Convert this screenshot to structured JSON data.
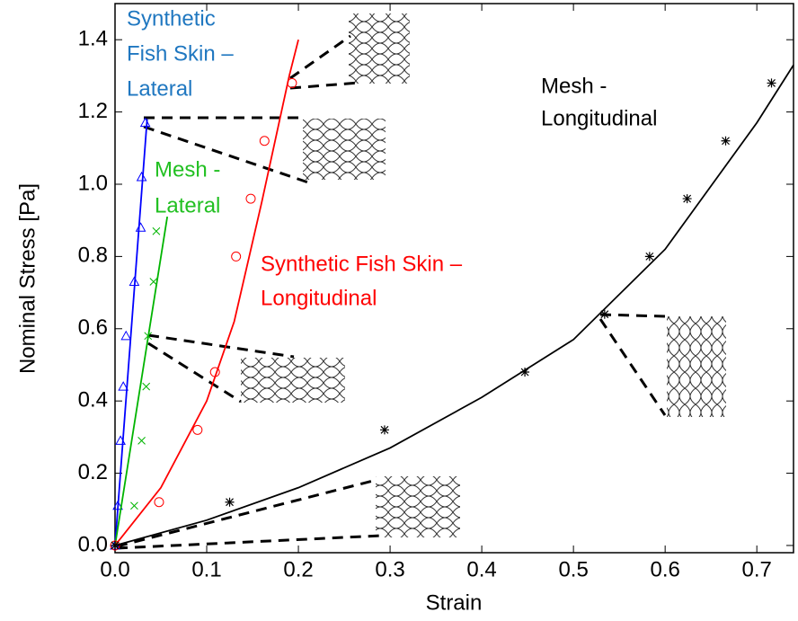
{
  "chart_data": {
    "type": "scatter",
    "x_label": "Strain",
    "y_label": "Nominal Stress [Pa]",
    "xlim": [
      0,
      0.74
    ],
    "ylim": [
      -0.02,
      1.5
    ],
    "xticks": [
      {
        "value": 0,
        "label": "0.0"
      },
      {
        "value": 0.1,
        "label": "0.1"
      },
      {
        "value": 0.2,
        "label": "0.2"
      },
      {
        "value": 0.3,
        "label": "0.3"
      },
      {
        "value": 0.4,
        "label": "0.4"
      },
      {
        "value": 0.5,
        "label": "0.5"
      },
      {
        "value": 0.6,
        "label": "0.6"
      },
      {
        "value": 0.7,
        "label": "0.7"
      }
    ],
    "yticks": [
      {
        "value": 0,
        "label": "0.0"
      },
      {
        "value": 0.2,
        "label": "0.2"
      },
      {
        "value": 0.4,
        "label": "0.4"
      },
      {
        "value": 0.6,
        "label": "0.6"
      },
      {
        "value": 0.8,
        "label": "0.8"
      },
      {
        "value": 1.0,
        "label": "1.0"
      },
      {
        "value": 1.2,
        "label": "1.2"
      },
      {
        "value": 1.4,
        "label": "1.4"
      }
    ],
    "series": [
      {
        "color": "#0000ff",
        "marker": "triangle",
        "x": [
          0,
          0.003,
          0.006,
          0.009,
          0.012,
          0.021,
          0.028,
          0.029,
          0.033
        ],
        "values": [
          0,
          0.11,
          0.29,
          0.44,
          0.58,
          0.73,
          0.88,
          1.02,
          1.17
        ],
        "fit_x": [
          0,
          0.035
        ],
        "fit_y": [
          0,
          1.18
        ]
      },
      {
        "color": "#00b400",
        "marker": "x",
        "x": [
          0,
          0.021,
          0.029,
          0.034,
          0.036,
          0.042,
          0.045
        ],
        "values": [
          0,
          0.11,
          0.29,
          0.44,
          0.58,
          0.73,
          0.87
        ],
        "fit_x": [
          0,
          0.057
        ],
        "fit_y": [
          0,
          0.91
        ]
      },
      {
        "color": "#ff0000",
        "marker": "circle",
        "x": [
          0,
          0.048,
          0.09,
          0.109,
          0.132,
          0.148,
          0.163,
          0.193
        ],
        "values": [
          0,
          0.12,
          0.32,
          0.48,
          0.8,
          0.96,
          1.12,
          1.28
        ],
        "fit_x": [
          0,
          0.05,
          0.1,
          0.13,
          0.16,
          0.19,
          0.2
        ],
        "fit_y": [
          0,
          0.16,
          0.4,
          0.62,
          0.95,
          1.3,
          1.4
        ]
      },
      {
        "color": "#000000",
        "marker": "star",
        "x": [
          0,
          0.125,
          0.294,
          0.447,
          0.534,
          0.583,
          0.624,
          0.666,
          0.716
        ],
        "values": [
          0,
          0.12,
          0.32,
          0.48,
          0.64,
          0.8,
          0.96,
          1.12,
          1.28
        ],
        "fit_x": [
          0,
          0.1,
          0.2,
          0.3,
          0.4,
          0.5,
          0.6,
          0.7,
          0.74
        ],
        "fit_y": [
          0,
          0.07,
          0.16,
          0.27,
          0.41,
          0.57,
          0.82,
          1.17,
          1.33
        ]
      }
    ],
    "annotations": [
      {
        "lines": [
          "Synthetic",
          "Fish Skin –",
          "Lateral"
        ],
        "color": "#1f77c0"
      },
      {
        "lines": [
          "Mesh -",
          "Lateral"
        ],
        "color": "#22c022"
      },
      {
        "lines": [
          "Synthetic Fish Skin –",
          "Longitudinal"
        ],
        "color": "#ff0000"
      },
      {
        "lines": [
          "Mesh -",
          "Longitudinal"
        ],
        "color": "#000000"
      }
    ]
  }
}
